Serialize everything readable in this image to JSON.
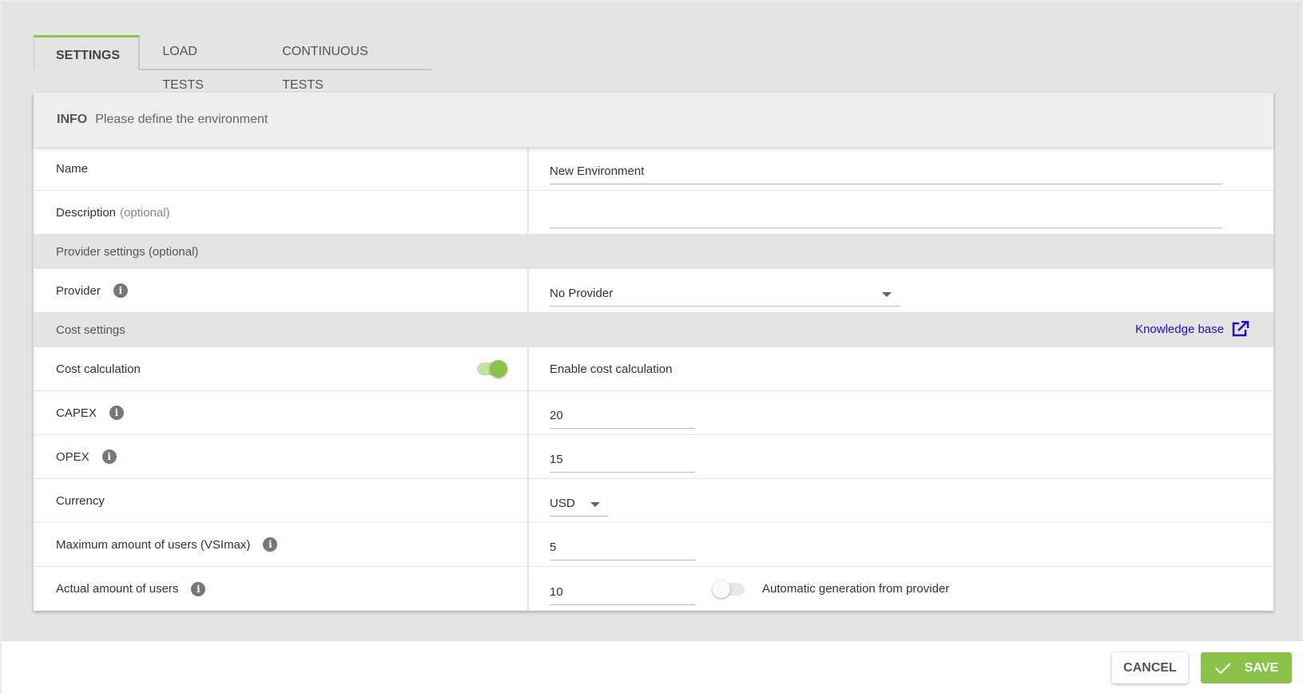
{
  "tabs": [
    {
      "label": "SETTINGS",
      "active": true
    },
    {
      "label": "LOAD TESTS"
    },
    {
      "label": "CONTINUOUS TESTS"
    }
  ],
  "info": {
    "title": "INFO",
    "subtitle": "Please define the environment"
  },
  "fields": {
    "name": {
      "label": "Name",
      "value": "New Environment"
    },
    "description": {
      "label": "Description",
      "optional": "(optional)",
      "value": ""
    },
    "provider_section": "Provider settings (optional)",
    "provider": {
      "label": "Provider",
      "value": "No Provider",
      "icon": "info-icon"
    },
    "cost_section": "Cost settings",
    "knowledge_base": "Knowledge base",
    "cost_calculation": {
      "label": "Cost calculation",
      "enabled": true,
      "text": "Enable cost calculation"
    },
    "capex": {
      "label": "CAPEX",
      "value": "20"
    },
    "opex": {
      "label": "OPEX",
      "value": "15"
    },
    "currency": {
      "label": "Currency",
      "value": "USD"
    },
    "max_users": {
      "label": "Maximum amount of users (VSImax)",
      "value": "5"
    },
    "actual_users": {
      "label": "Actual amount of users",
      "value": "10",
      "auto_generation": false,
      "auto_text": "Automatic generation from provider"
    }
  },
  "footer": {
    "cancel": "CANCEL",
    "save": "SAVE"
  },
  "colors": {
    "accent": "#8bc34a",
    "link": "#1a0dcc",
    "background": "#e4e4e4"
  }
}
